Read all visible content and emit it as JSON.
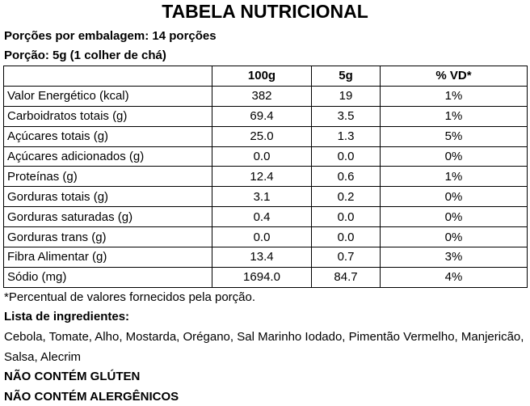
{
  "header": {
    "title": "TABELA NUTRICIONAL",
    "servings": "Porções por embalagem: 14 porções",
    "portion": "Porção: 5g (1 colher de chá)"
  },
  "table": {
    "columns": [
      "100g",
      "5g",
      "% VD*"
    ],
    "rows": [
      [
        "Valor Energético (kcal)",
        "382",
        "19",
        "1%"
      ],
      [
        "Carboidratos totais (g)",
        "69.4",
        "3.5",
        "1%"
      ],
      [
        "Açúcares totais (g)",
        "25.0",
        "1.3",
        "5%"
      ],
      [
        "Açúcares adicionados (g)",
        "0.0",
        "0.0",
        "0%"
      ],
      [
        "Proteínas (g)",
        "12.4",
        "0.6",
        "1%"
      ],
      [
        "Gorduras totais (g)",
        "3.1",
        "0.2",
        "0%"
      ],
      [
        "Gorduras saturadas (g)",
        "0.4",
        "0.0",
        "0%"
      ],
      [
        "Gorduras trans (g)",
        "0.0",
        "0.0",
        "0%"
      ],
      [
        "Fibra Alimentar (g)",
        "13.4",
        "0.7",
        "3%"
      ],
      [
        "Sódio (mg)",
        "1694.0",
        "84.7",
        "4%"
      ]
    ],
    "footnote": "*Percentual de valores fornecidos pela porção."
  },
  "ingredients": {
    "title": "Lista de ingredientes:",
    "text": "Cebola, Tomate, Alho, Mostarda, Orégano, Sal Marinho Iodado, Pimentão Vermelho, Manjericão, Salsa, Alecrim"
  },
  "notes": [
    "NÃO CONTÉM GLÚTEN",
    "NÃO CONTÉM ALERGÊNICOS"
  ]
}
